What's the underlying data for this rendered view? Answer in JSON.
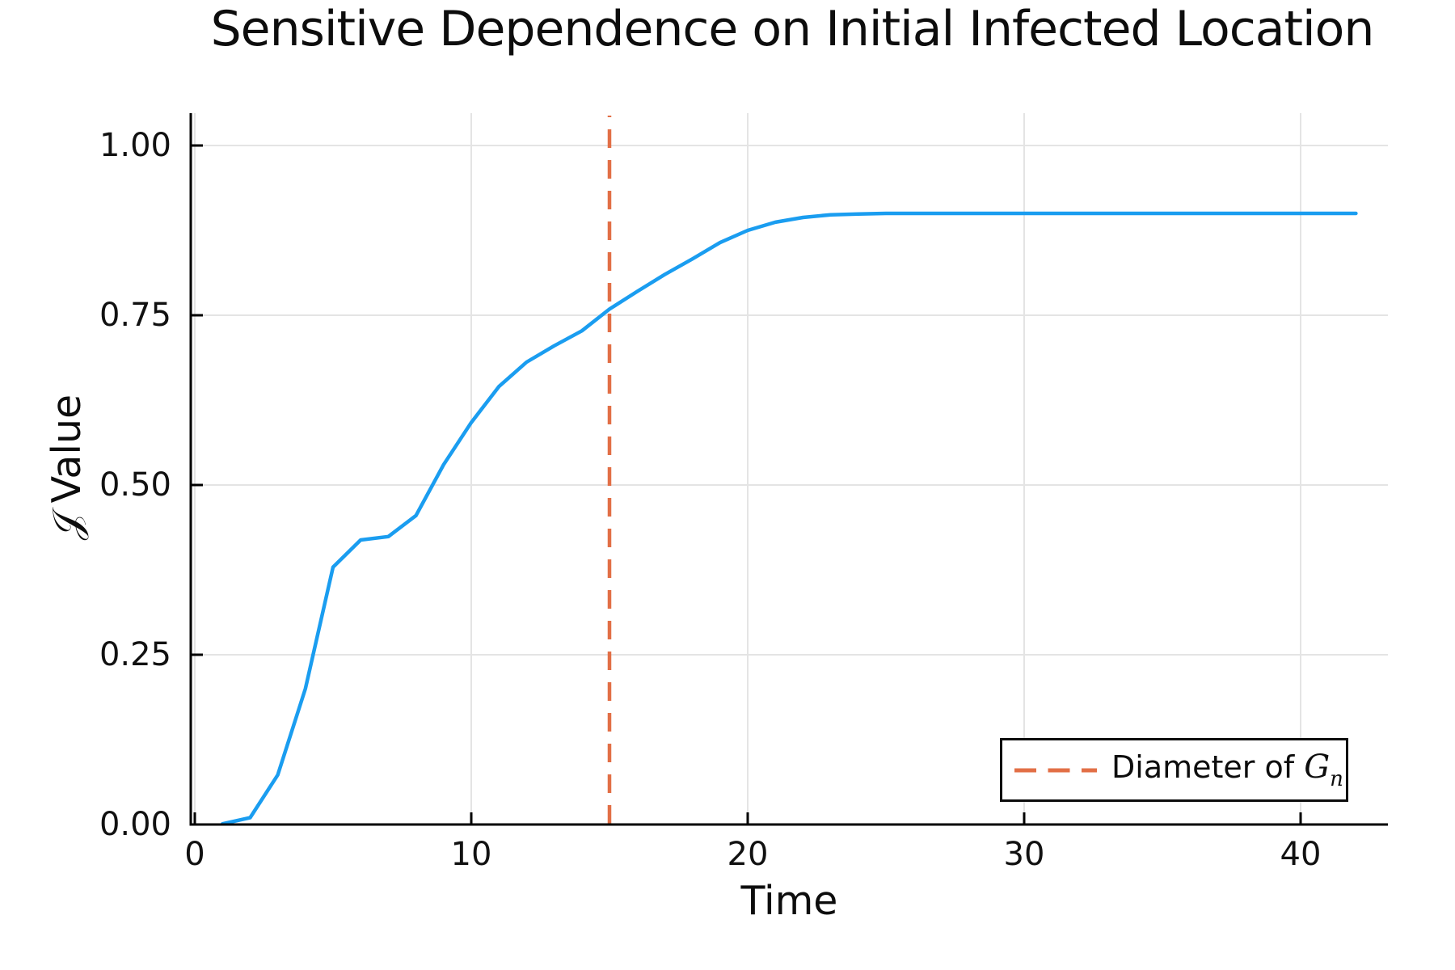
{
  "chart": {
    "title": "Sensitive Dependence on Initial Infected Location",
    "xlabel": "Time",
    "ylabel_symbol": "𝒥",
    "ylabel_word": "Value",
    "legend": {
      "prefix": "Diameter of ",
      "variable": "G",
      "subscript": "n"
    }
  },
  "chart_data": {
    "type": "line",
    "title": "Sensitive Dependence on Initial Infected Location",
    "xlabel": "Time",
    "ylabel": "𝒥 Value",
    "grid": true,
    "legend_position": "bottom-right",
    "xlim": [
      -0.15,
      43.2
    ],
    "ylim": [
      0,
      1.048
    ],
    "xticks": {
      "values": [
        0,
        10,
        20,
        30,
        40
      ],
      "labels": [
        "0",
        "10",
        "20",
        "30",
        "40"
      ]
    },
    "yticks": {
      "values": [
        0,
        0.25,
        0.5,
        0.75,
        1.0
      ],
      "labels": [
        "0.00",
        "0.25",
        "0.50",
        "0.75",
        "1.00"
      ]
    },
    "x": [
      1,
      2,
      3,
      4,
      5,
      6,
      7,
      8,
      9,
      10,
      11,
      12,
      13,
      14,
      15,
      16,
      17,
      18,
      19,
      20,
      21,
      22,
      23,
      24,
      25,
      26,
      27,
      28,
      29,
      30,
      31,
      32,
      33,
      34,
      35,
      36,
      37,
      38,
      39,
      40,
      41,
      42
    ],
    "series": [
      {
        "name": "𝒥 value",
        "color": "#1A9DF0",
        "line_width": 4.5,
        "values": [
          0.001,
          0.01,
          0.073,
          0.2,
          0.379,
          0.419,
          0.424,
          0.455,
          0.53,
          0.592,
          0.645,
          0.681,
          0.705,
          0.727,
          0.759,
          0.785,
          0.81,
          0.833,
          0.857,
          0.875,
          0.887,
          0.894,
          0.898,
          0.899,
          0.9,
          0.9,
          0.9,
          0.9,
          0.9,
          0.9,
          0.9,
          0.9,
          0.9,
          0.9,
          0.9,
          0.9,
          0.9,
          0.9,
          0.9,
          0.9,
          0.9,
          0.9
        ]
      }
    ],
    "vline": {
      "x": 15,
      "label": "Diameter of Gₙ",
      "color": "#E26F46",
      "style": "dashed",
      "line_width": 4.5
    },
    "colors": {
      "grid": "#E4E4E4",
      "axis": "#000000",
      "background": "#FFFFFF"
    }
  }
}
